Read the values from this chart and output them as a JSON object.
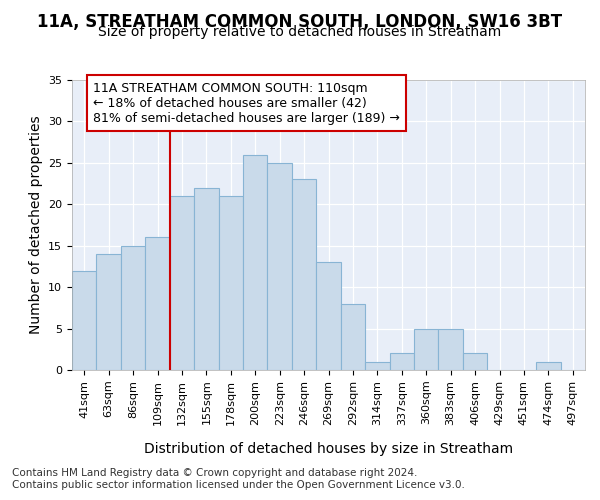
{
  "title_line1": "11A, STREATHAM COMMON SOUTH, LONDON, SW16 3BT",
  "title_line2": "Size of property relative to detached houses in Streatham",
  "xlabel": "Distribution of detached houses by size in Streatham",
  "ylabel": "Number of detached properties",
  "footer_line1": "Contains HM Land Registry data © Crown copyright and database right 2024.",
  "footer_line2": "Contains public sector information licensed under the Open Government Licence v3.0.",
  "annotation_line1": "11A STREATHAM COMMON SOUTH: 110sqm",
  "annotation_line2": "← 18% of detached houses are smaller (42)",
  "annotation_line3": "81% of semi-detached houses are larger (189) →",
  "bar_labels": [
    "41sqm",
    "63sqm",
    "86sqm",
    "109sqm",
    "132sqm",
    "155sqm",
    "178sqm",
    "200sqm",
    "223sqm",
    "246sqm",
    "269sqm",
    "292sqm",
    "314sqm",
    "337sqm",
    "360sqm",
    "383sqm",
    "406sqm",
    "429sqm",
    "451sqm",
    "474sqm",
    "497sqm"
  ],
  "bar_values": [
    12,
    14,
    15,
    16,
    21,
    22,
    21,
    26,
    25,
    23,
    13,
    8,
    1,
    2,
    5,
    5,
    2,
    0,
    0,
    1,
    0
  ],
  "bar_color": "#c9daea",
  "bar_edge_color": "#88b4d4",
  "vline_x_index": 3,
  "vline_color": "#cc0000",
  "ylim": [
    0,
    35
  ],
  "yticks": [
    0,
    5,
    10,
    15,
    20,
    25,
    30,
    35
  ],
  "background_color": "#ffffff",
  "plot_background": "#e8eef8",
  "grid_color": "#ffffff",
  "title_fontsize": 12,
  "subtitle_fontsize": 10,
  "axis_label_fontsize": 10,
  "tick_fontsize": 8,
  "annotation_fontsize": 9,
  "footer_fontsize": 7.5
}
